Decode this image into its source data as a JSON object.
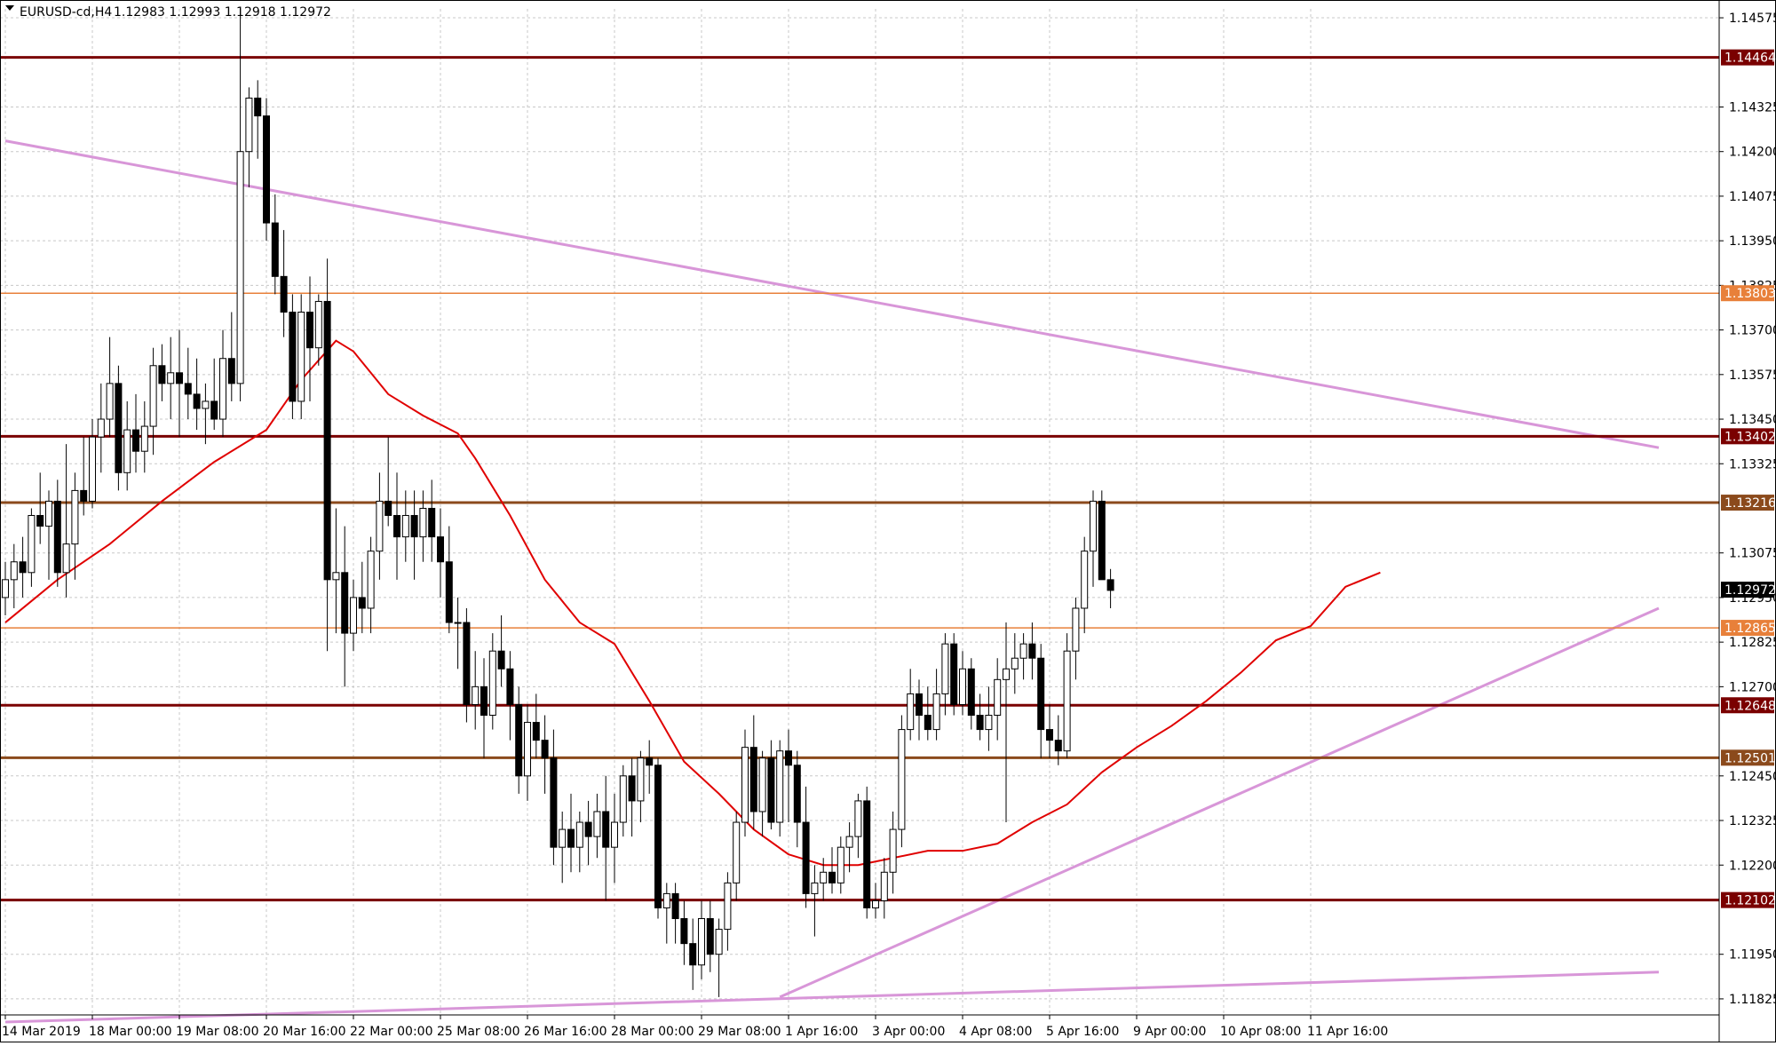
{
  "header": {
    "symbol_title": "EURUSD-cd,H4",
    "ohlc": "1.12983 1.12993 1.12918 1.12972"
  },
  "colors": {
    "background": "#ffffff",
    "grid": "#c8c8c8",
    "bull_candle": "#ffffff",
    "bear_candle": "#000000",
    "wick": "#000000",
    "moving_average": "#e00000",
    "trendline": "#d896d8",
    "level_dark_red": "#7a0000",
    "level_brown": "#8b4a1c",
    "level_orange": "#e8803a",
    "current_price_label": "#000000"
  },
  "chart_data": {
    "type": "candlestick",
    "symbol": "EURUSD-cd",
    "timeframe": "H4",
    "ylim": [
      1.1178,
      1.146
    ],
    "y_ticks": [
      "1.14575",
      "1.14325",
      "1.14200",
      "1.14075",
      "1.13950",
      "1.13825",
      "1.13700",
      "1.13575",
      "1.13450",
      "1.13325",
      "1.13075",
      "1.12950",
      "1.12825",
      "1.12700",
      "1.12450",
      "1.12325",
      "1.12200",
      "1.11950",
      "1.11825"
    ],
    "x_ticks": [
      "14 Mar 2019",
      "18 Mar 00:00",
      "19 Mar 08:00",
      "20 Mar 16:00",
      "22 Mar 00:00",
      "25 Mar 08:00",
      "26 Mar 16:00",
      "28 Mar 00:00",
      "29 Mar 08:00",
      "1 Apr 16:00",
      "3 Apr 00:00",
      "4 Apr 08:00",
      "5 Apr 16:00",
      "9 Apr 00:00",
      "10 Apr 08:00",
      "11 Apr 16:00"
    ],
    "x_tick_index": [
      0,
      10,
      20,
      30,
      40,
      50,
      60,
      70,
      80,
      90,
      100,
      110,
      120,
      130,
      140,
      150
    ],
    "candles": [
      [
        1.1295,
        1.1305,
        1.129,
        1.13
      ],
      [
        1.13,
        1.131,
        1.1292,
        1.1305
      ],
      [
        1.1305,
        1.1312,
        1.1295,
        1.1302
      ],
      [
        1.1302,
        1.132,
        1.1298,
        1.1318
      ],
      [
        1.1318,
        1.133,
        1.131,
        1.1315
      ],
      [
        1.1315,
        1.1325,
        1.13,
        1.1322
      ],
      [
        1.1322,
        1.1328,
        1.1298,
        1.1302
      ],
      [
        1.1302,
        1.1338,
        1.1295,
        1.131
      ],
      [
        1.131,
        1.133,
        1.13,
        1.1325
      ],
      [
        1.1325,
        1.134,
        1.1318,
        1.1322
      ],
      [
        1.1322,
        1.1345,
        1.132,
        1.134
      ],
      [
        1.134,
        1.1355,
        1.133,
        1.1345
      ],
      [
        1.1345,
        1.1368,
        1.134,
        1.1355
      ],
      [
        1.1355,
        1.136,
        1.1325,
        1.133
      ],
      [
        1.133,
        1.135,
        1.1325,
        1.1342
      ],
      [
        1.1342,
        1.1352,
        1.133,
        1.1336
      ],
      [
        1.1336,
        1.135,
        1.133,
        1.1343
      ],
      [
        1.1343,
        1.1365,
        1.1335,
        1.136
      ],
      [
        1.136,
        1.1366,
        1.135,
        1.1355
      ],
      [
        1.1355,
        1.1368,
        1.1345,
        1.1358
      ],
      [
        1.1358,
        1.137,
        1.134,
        1.1355
      ],
      [
        1.1355,
        1.1365,
        1.1345,
        1.1352
      ],
      [
        1.1352,
        1.1362,
        1.1342,
        1.1348
      ],
      [
        1.1348,
        1.1355,
        1.1338,
        1.135
      ],
      [
        1.135,
        1.1362,
        1.1342,
        1.1345
      ],
      [
        1.1345,
        1.137,
        1.134,
        1.1362
      ],
      [
        1.1362,
        1.1375,
        1.135,
        1.1355
      ],
      [
        1.1355,
        1.146,
        1.135,
        1.142
      ],
      [
        1.142,
        1.1438,
        1.141,
        1.1435
      ],
      [
        1.1435,
        1.144,
        1.1418,
        1.143
      ],
      [
        1.143,
        1.1435,
        1.1395,
        1.14
      ],
      [
        1.14,
        1.1408,
        1.138,
        1.1385
      ],
      [
        1.1385,
        1.1398,
        1.1368,
        1.1375
      ],
      [
        1.1375,
        1.138,
        1.1345,
        1.135
      ],
      [
        1.135,
        1.138,
        1.1345,
        1.1375
      ],
      [
        1.1375,
        1.1385,
        1.135,
        1.1365
      ],
      [
        1.1365,
        1.138,
        1.136,
        1.1378
      ],
      [
        1.1378,
        1.139,
        1.128,
        1.13
      ],
      [
        1.13,
        1.132,
        1.1285,
        1.1302
      ],
      [
        1.1302,
        1.1315,
        1.127,
        1.1285
      ],
      [
        1.1285,
        1.13,
        1.128,
        1.1295
      ],
      [
        1.1295,
        1.1305,
        1.1285,
        1.1292
      ],
      [
        1.1292,
        1.1312,
        1.1285,
        1.1308
      ],
      [
        1.1308,
        1.133,
        1.13,
        1.1322
      ],
      [
        1.1322,
        1.134,
        1.1315,
        1.1318
      ],
      [
        1.1318,
        1.133,
        1.13,
        1.1312
      ],
      [
        1.1312,
        1.1325,
        1.1305,
        1.1318
      ],
      [
        1.1318,
        1.1325,
        1.13,
        1.1312
      ],
      [
        1.1312,
        1.1325,
        1.1305,
        1.132
      ],
      [
        1.132,
        1.1328,
        1.1305,
        1.1312
      ],
      [
        1.1312,
        1.132,
        1.1295,
        1.1305
      ],
      [
        1.1305,
        1.1315,
        1.1285,
        1.1288
      ],
      [
        1.1288,
        1.1295,
        1.1275,
        1.1288
      ],
      [
        1.1288,
        1.1292,
        1.126,
        1.1265
      ],
      [
        1.1265,
        1.128,
        1.1258,
        1.127
      ],
      [
        1.127,
        1.1278,
        1.125,
        1.1262
      ],
      [
        1.1262,
        1.1285,
        1.1258,
        1.128
      ],
      [
        1.128,
        1.129,
        1.127,
        1.1275
      ],
      [
        1.1275,
        1.128,
        1.1255,
        1.1265
      ],
      [
        1.1265,
        1.127,
        1.124,
        1.1245
      ],
      [
        1.1245,
        1.1265,
        1.1238,
        1.126
      ],
      [
        1.126,
        1.1268,
        1.125,
        1.1255
      ],
      [
        1.1255,
        1.1262,
        1.124,
        1.125
      ],
      [
        1.125,
        1.1258,
        1.122,
        1.1225
      ],
      [
        1.1225,
        1.1235,
        1.1215,
        1.123
      ],
      [
        1.123,
        1.124,
        1.1218,
        1.1225
      ],
      [
        1.1225,
        1.1235,
        1.1218,
        1.1232
      ],
      [
        1.1232,
        1.1238,
        1.122,
        1.1228
      ],
      [
        1.1228,
        1.124,
        1.1222,
        1.1235
      ],
      [
        1.1235,
        1.1245,
        1.121,
        1.1225
      ],
      [
        1.1225,
        1.124,
        1.1215,
        1.1232
      ],
      [
        1.1232,
        1.1248,
        1.1228,
        1.1245
      ],
      [
        1.1245,
        1.125,
        1.1228,
        1.1238
      ],
      [
        1.1238,
        1.1252,
        1.1232,
        1.125
      ],
      [
        1.125,
        1.1255,
        1.124,
        1.1248
      ],
      [
        1.1248,
        1.125,
        1.1205,
        1.1208
      ],
      [
        1.1208,
        1.1215,
        1.1198,
        1.1212
      ],
      [
        1.1212,
        1.1215,
        1.1198,
        1.1205
      ],
      [
        1.1205,
        1.121,
        1.1192,
        1.1198
      ],
      [
        1.1198,
        1.1205,
        1.1185,
        1.1192
      ],
      [
        1.1192,
        1.121,
        1.1188,
        1.1205
      ],
      [
        1.1205,
        1.121,
        1.119,
        1.1195
      ],
      [
        1.1195,
        1.1205,
        1.1183,
        1.1202
      ],
      [
        1.1202,
        1.1218,
        1.1196,
        1.1215
      ],
      [
        1.1215,
        1.1235,
        1.121,
        1.1232
      ],
      [
        1.1232,
        1.1258,
        1.1228,
        1.1253
      ],
      [
        1.1253,
        1.1262,
        1.123,
        1.1235
      ],
      [
        1.1235,
        1.1252,
        1.1228,
        1.125
      ],
      [
        1.125,
        1.1255,
        1.123,
        1.1232
      ],
      [
        1.1232,
        1.1255,
        1.1228,
        1.1252
      ],
      [
        1.1252,
        1.1258,
        1.1232,
        1.1248
      ],
      [
        1.1248,
        1.1252,
        1.1225,
        1.1232
      ],
      [
        1.1232,
        1.1242,
        1.1208,
        1.1212
      ],
      [
        1.1212,
        1.122,
        1.12,
        1.1215
      ],
      [
        1.1215,
        1.1222,
        1.121,
        1.1218
      ],
      [
        1.1218,
        1.1225,
        1.1212,
        1.1215
      ],
      [
        1.1215,
        1.1228,
        1.1212,
        1.1225
      ],
      [
        1.1225,
        1.1232,
        1.1218,
        1.1228
      ],
      [
        1.1228,
        1.124,
        1.1222,
        1.1238
      ],
      [
        1.1238,
        1.1242,
        1.1205,
        1.1208
      ],
      [
        1.1208,
        1.1215,
        1.1205,
        1.121
      ],
      [
        1.121,
        1.1222,
        1.1205,
        1.1218
      ],
      [
        1.1218,
        1.1235,
        1.1212,
        1.123
      ],
      [
        1.123,
        1.1262,
        1.1225,
        1.1258
      ],
      [
        1.1258,
        1.1275,
        1.1255,
        1.1268
      ],
      [
        1.1268,
        1.1272,
        1.1255,
        1.1262
      ],
      [
        1.1262,
        1.127,
        1.1255,
        1.1258
      ],
      [
        1.1258,
        1.1275,
        1.1255,
        1.1268
      ],
      [
        1.1268,
        1.1285,
        1.1262,
        1.1282
      ],
      [
        1.1282,
        1.1285,
        1.1262,
        1.1265
      ],
      [
        1.1265,
        1.128,
        1.1262,
        1.1275
      ],
      [
        1.1275,
        1.1278,
        1.1258,
        1.1262
      ],
      [
        1.1262,
        1.1268,
        1.1255,
        1.1258
      ],
      [
        1.1258,
        1.127,
        1.1252,
        1.1262
      ],
      [
        1.1262,
        1.1278,
        1.1255,
        1.1272
      ],
      [
        1.1272,
        1.1288,
        1.1232,
        1.1275
      ],
      [
        1.1275,
        1.1285,
        1.1268,
        1.1278
      ],
      [
        1.1278,
        1.1285,
        1.1272,
        1.1282
      ],
      [
        1.1282,
        1.1288,
        1.1272,
        1.1278
      ],
      [
        1.1278,
        1.1282,
        1.125,
        1.1258
      ],
      [
        1.1258,
        1.1265,
        1.125,
        1.1255
      ],
      [
        1.1255,
        1.1262,
        1.1248,
        1.1252
      ],
      [
        1.1252,
        1.1285,
        1.125,
        1.128
      ],
      [
        1.128,
        1.1295,
        1.1272,
        1.1292
      ],
      [
        1.1292,
        1.1312,
        1.1285,
        1.1308
      ],
      [
        1.1308,
        1.1325,
        1.1298,
        1.1322
      ],
      [
        1.1322,
        1.1325,
        1.13,
        1.13
      ],
      [
        1.13,
        1.1303,
        1.1292,
        1.1297
      ]
    ],
    "moving_average": [
      [
        0,
        1.1288
      ],
      [
        6,
        1.13
      ],
      [
        12,
        1.131
      ],
      [
        18,
        1.1322
      ],
      [
        24,
        1.1333
      ],
      [
        30,
        1.1342
      ],
      [
        34,
        1.1356
      ],
      [
        38,
        1.1367
      ],
      [
        40,
        1.1364
      ],
      [
        44,
        1.1352
      ],
      [
        48,
        1.1346
      ],
      [
        52,
        1.1341
      ],
      [
        54,
        1.1334
      ],
      [
        58,
        1.1318
      ],
      [
        62,
        1.13
      ],
      [
        66,
        1.1288
      ],
      [
        70,
        1.1282
      ],
      [
        74,
        1.1266
      ],
      [
        78,
        1.1249
      ],
      [
        82,
        1.124
      ],
      [
        86,
        1.123
      ],
      [
        90,
        1.1223
      ],
      [
        94,
        1.122
      ],
      [
        98,
        1.122
      ],
      [
        102,
        1.1222
      ],
      [
        106,
        1.1224
      ],
      [
        110,
        1.1224
      ],
      [
        114,
        1.1226
      ],
      [
        118,
        1.1232
      ],
      [
        122,
        1.1237
      ],
      [
        126,
        1.1246
      ],
      [
        130,
        1.1253
      ],
      [
        134,
        1.1259
      ],
      [
        138,
        1.1266
      ],
      [
        142,
        1.1274
      ],
      [
        146,
        1.1283
      ],
      [
        150,
        1.1287
      ],
      [
        154,
        1.1298
      ],
      [
        158,
        1.1302
      ]
    ],
    "trendlines": [
      {
        "x": [
          0,
          190
        ],
        "y": [
          1.1423,
          1.1337
        ]
      },
      {
        "x": [
          89,
          190
        ],
        "y": [
          1.1183,
          1.1292
        ]
      },
      {
        "x": [
          0,
          190
        ],
        "y": [
          1.1176,
          1.119
        ]
      }
    ],
    "levels": [
      {
        "value": 1.14464,
        "label": "1.14464",
        "style": "dark_red"
      },
      {
        "value": 1.13803,
        "label": "1.13803",
        "style": "orange"
      },
      {
        "value": 1.13402,
        "label": "1.13402",
        "style": "dark_red"
      },
      {
        "value": 1.13216,
        "label": "1.13216",
        "style": "brown"
      },
      {
        "value": 1.12865,
        "label": "1.12865",
        "style": "orange"
      },
      {
        "value": 1.12648,
        "label": "1.12648",
        "style": "dark_red"
      },
      {
        "value": 1.12501,
        "label": "1.12501",
        "style": "brown"
      },
      {
        "value": 1.12102,
        "label": "1.12102",
        "style": "dark_red"
      }
    ],
    "current_price": {
      "value": 1.12972,
      "label": "1.12972"
    },
    "grid": true
  }
}
